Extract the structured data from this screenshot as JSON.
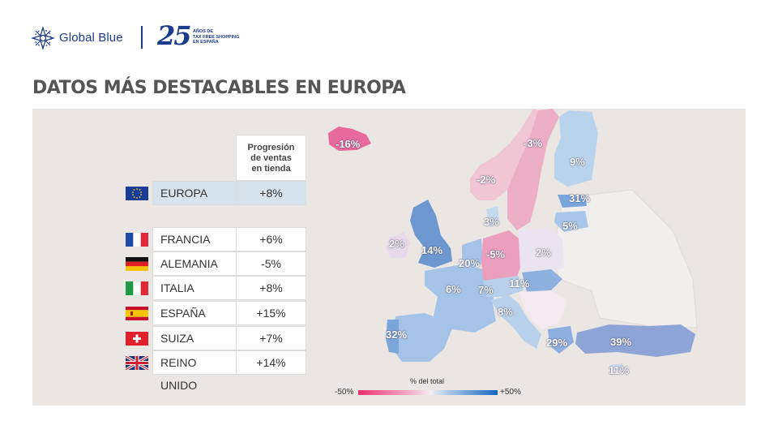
{
  "header": {
    "brand_name": "Global Blue",
    "anniversary_number": "25",
    "anniversary_lines": [
      "AÑOS DE",
      "TAX FREE SHOPPING",
      "EN ESPAÑA"
    ]
  },
  "title": "DATOS MÁS DESTACABLES EN EUROPA",
  "table": {
    "column_header_lines": [
      "Progresión",
      "de ventas",
      "en tienda"
    ],
    "europe": {
      "flag": "eu-flag-icon",
      "country": "EUROPA",
      "value": "+8%"
    },
    "countries": [
      {
        "flag": "france-flag-icon",
        "country": "FRANCIA",
        "value": "+6%"
      },
      {
        "flag": "germany-flag-icon",
        "country": "ALEMANIA",
        "value": "-5%"
      },
      {
        "flag": "italy-flag-icon",
        "country": "ITALIA",
        "value": "+8%"
      },
      {
        "flag": "spain-flag-icon",
        "country": "ESPAÑA",
        "value": "+15%"
      },
      {
        "flag": "switzerland-flag-icon",
        "country": "SUIZA",
        "value": "+7%"
      },
      {
        "flag": "uk-flag-icon",
        "country": "REINO UNIDO",
        "value": "+14%"
      }
    ]
  },
  "map": {
    "labels": {
      "iceland": "-16%",
      "sweden": "-3%",
      "norway": "-2%",
      "finland": "9%",
      "estonia": "31%",
      "latvia": "5%",
      "denmark": "3%",
      "ireland": "2%",
      "uk": "14%",
      "poland": "2%",
      "netherlands": "20%",
      "germany": "-5%",
      "france": "6%",
      "switzerland": "7%",
      "hungary": "11%",
      "italy": "8%",
      "portugal": "32%",
      "greece": "29%",
      "turkey": "39%",
      "cyprus": "11%"
    },
    "colors": {
      "negative_strong": "#e8306f",
      "neutral": "#f2eef2",
      "positive_strong": "#1566c0"
    }
  },
  "legend": {
    "title": "% del total",
    "min_label": "-50%",
    "max_label": "+50%"
  }
}
